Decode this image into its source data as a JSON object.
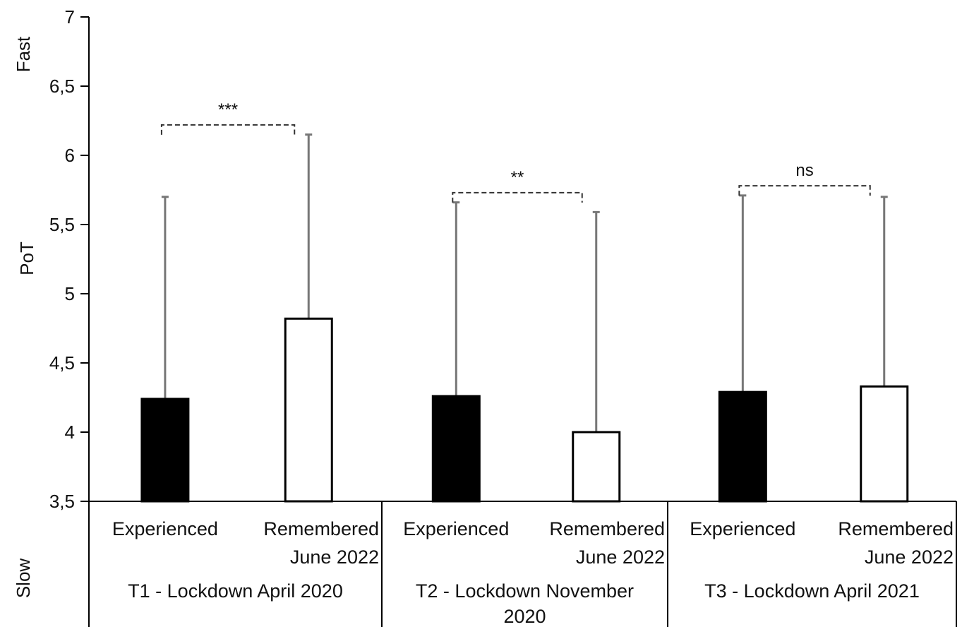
{
  "chart_data": {
    "type": "bar",
    "ylabel": "PoT",
    "y_top_label": "Fast",
    "y_bottom_label": "Slow",
    "ylim": [
      3.5,
      7
    ],
    "yticks": [
      "3,5",
      "4",
      "4,5",
      "5",
      "5,5",
      "6",
      "6,5",
      "7"
    ],
    "ytick_values": [
      3.5,
      4,
      4.5,
      5,
      5.5,
      6,
      6.5,
      7
    ],
    "groups": [
      {
        "name": "T1 - Lockdown April 2020",
        "name_lines": [
          "T1 - Lockdown April 2020"
        ],
        "significance": "***",
        "bars": [
          {
            "label_lines": [
              "Experienced"
            ],
            "value": 4.24,
            "error_top": 5.7,
            "fill": "#000000"
          },
          {
            "label_lines": [
              "Remembered",
              "June 2022"
            ],
            "value": 4.82,
            "error_top": 6.15,
            "fill": "#ffffff"
          }
        ]
      },
      {
        "name": "T2 - Lockdown November 2020",
        "name_lines": [
          "T2 - Lockdown November",
          "2020"
        ],
        "significance": "**",
        "bars": [
          {
            "label_lines": [
              "Experienced"
            ],
            "value": 4.26,
            "error_top": 5.66,
            "fill": "#000000"
          },
          {
            "label_lines": [
              "Remembered",
              "June 2022"
            ],
            "value": 4.0,
            "error_top": 5.59,
            "fill": "#ffffff"
          }
        ]
      },
      {
        "name": "T3 - Lockdown April 2021",
        "name_lines": [
          "T3 - Lockdown April 2021"
        ],
        "significance": "ns",
        "bars": [
          {
            "label_lines": [
              "Experienced"
            ],
            "value": 4.29,
            "error_top": 5.71,
            "fill": "#000000"
          },
          {
            "label_lines": [
              "Remembered",
              "June 2022"
            ],
            "value": 4.33,
            "error_top": 5.7,
            "fill": "#ffffff"
          }
        ]
      }
    ],
    "grid": false,
    "legend": "none"
  }
}
